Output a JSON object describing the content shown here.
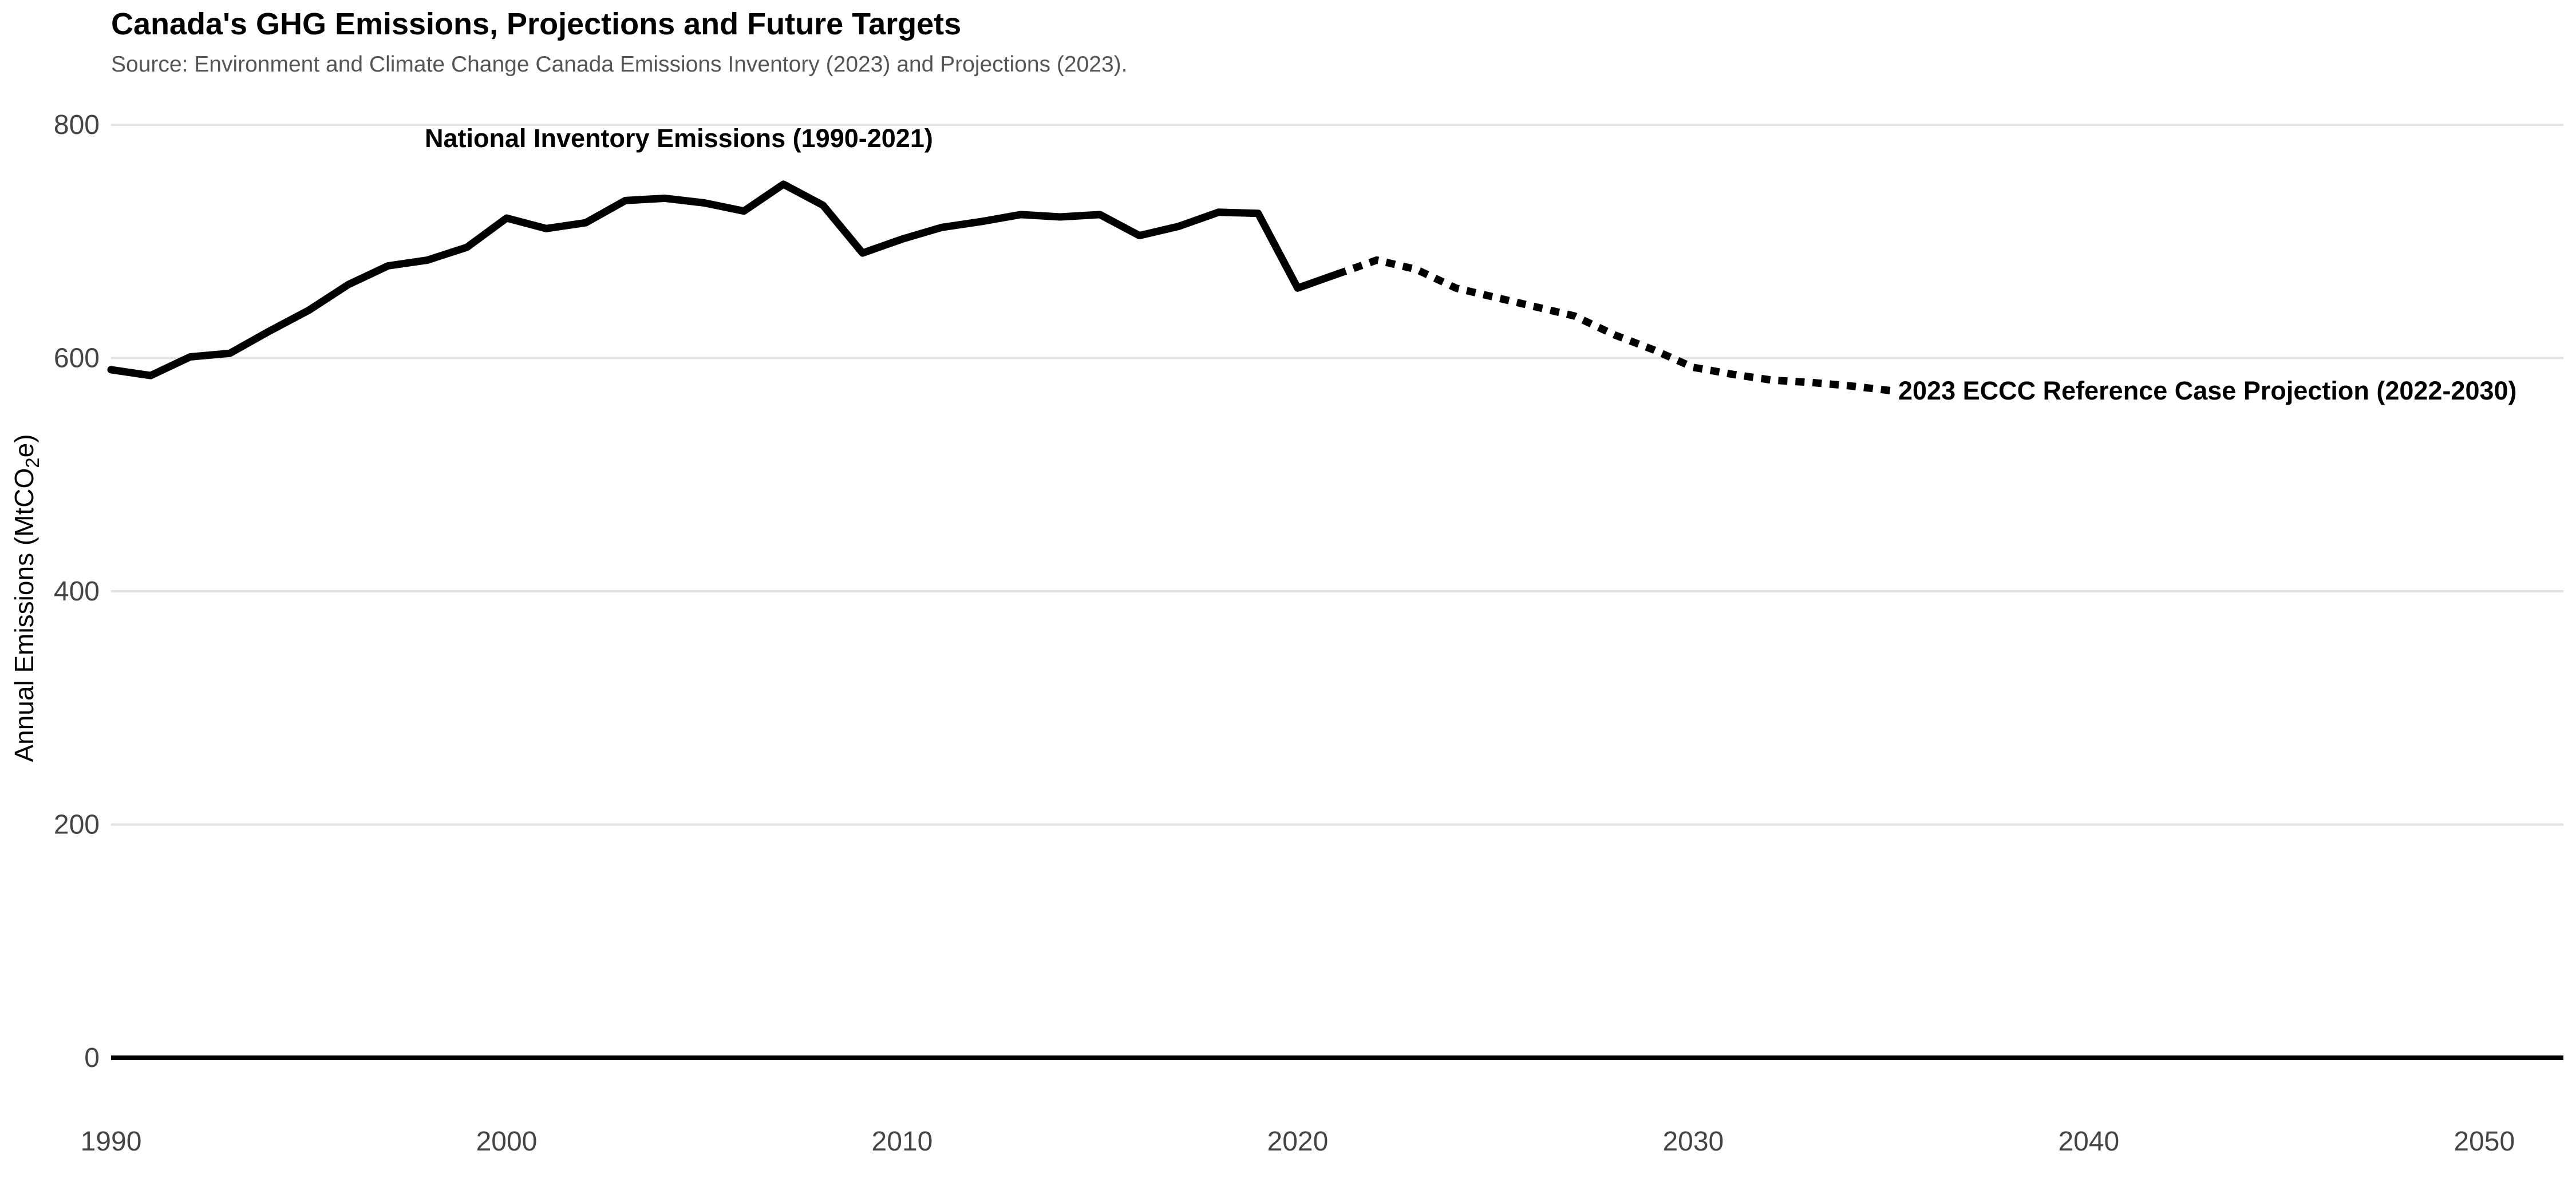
{
  "chart_data": {
    "type": "line",
    "title": "Canada's GHG Emissions, Projections and Future Targets",
    "subtitle": "Source: Environment and Climate Change Canada Emissions Inventory (2023) and Projections (2023).",
    "ylabel": "Annual Emissions (MtCO2e)",
    "ylabel_parts": {
      "before": "Annual Emissions (MtCO",
      "subscript": "2",
      "after": "e)"
    },
    "xlabel": "",
    "xlim": [
      1990,
      2052
    ],
    "ylim": [
      0,
      800
    ],
    "x_ticks": [
      1990,
      2000,
      2010,
      2020,
      2030,
      2040,
      2050
    ],
    "y_ticks": [
      0,
      200,
      400,
      600,
      800
    ],
    "grid": true,
    "series": [
      {
        "label": "National Inventory Emissions (1990-2021)",
        "style": "solid",
        "color": "#000000",
        "x": [
          1990,
          1991,
          1992,
          1993,
          1994,
          1995,
          1996,
          1997,
          1998,
          1999,
          2000,
          2001,
          2002,
          2003,
          2004,
          2005,
          2006,
          2007,
          2008,
          2009,
          2010,
          2011,
          2012,
          2013,
          2014,
          2015,
          2016,
          2017,
          2018,
          2019,
          2020,
          2021
        ],
        "values": [
          590,
          585,
          601,
          604,
          623,
          641,
          663,
          679,
          684,
          695,
          720,
          711,
          716,
          735,
          737,
          733,
          726,
          749,
          731,
          690,
          702,
          712,
          717,
          723,
          721,
          723,
          705,
          713,
          725,
          724,
          660,
          672
        ]
      },
      {
        "label": "2023 ECCC Reference Case Projection (2022-2030)",
        "style": "dotted",
        "color": "#000000",
        "x": [
          2021,
          2022,
          2023,
          2024,
          2025,
          2026,
          2027,
          2028,
          2029,
          2030,
          2031,
          2032,
          2033,
          2034,
          2035
        ],
        "values": [
          672,
          684,
          676,
          660,
          652,
          644,
          636,
          620,
          607,
          592,
          586,
          581,
          579,
          576,
          572
        ]
      }
    ]
  }
}
